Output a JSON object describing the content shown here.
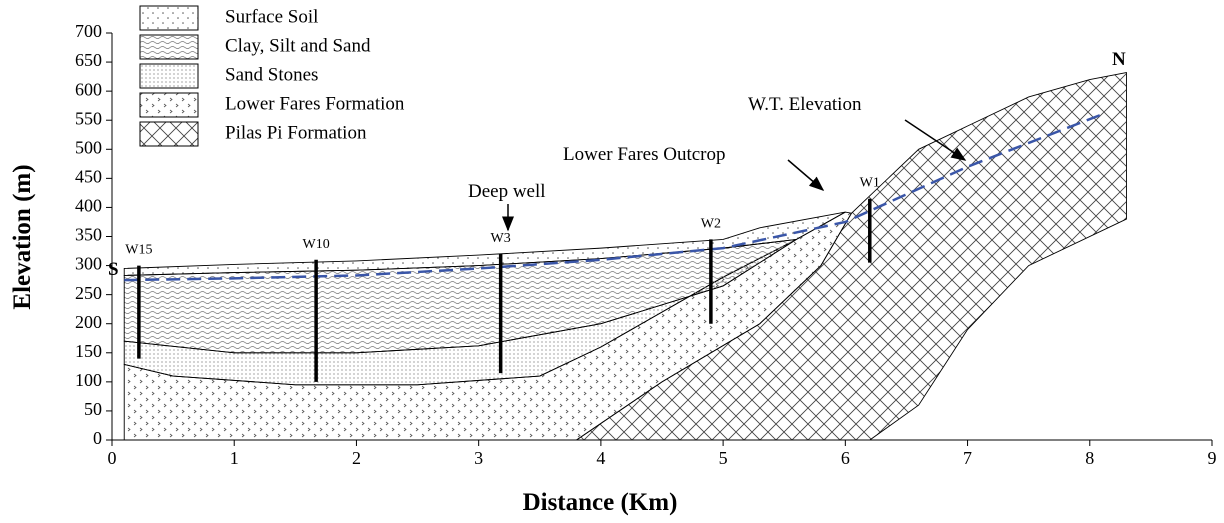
{
  "chart_data": {
    "type": "cross-section",
    "x_label": "Distance (Km)",
    "y_label": "Elevation (m)",
    "xlim": [
      0,
      9
    ],
    "xticks": [
      0,
      1,
      2,
      3,
      4,
      5,
      6,
      7,
      8,
      9
    ],
    "ylim": [
      0,
      700
    ],
    "yticks": [
      0,
      50,
      100,
      150,
      200,
      250,
      300,
      350,
      400,
      450,
      500,
      550,
      600,
      650,
      700
    ],
    "layers": [
      {
        "name": "Pilas Pi Formation",
        "x": [
          6.2,
          6.6,
          7,
          7.5,
          8,
          8.3,
          8.3,
          7.5,
          7,
          6.6,
          6.2,
          3.8,
          4.5,
          5.3,
          5.8,
          6.05
        ],
        "y": [
          420,
          500,
          540,
          590,
          620,
          632,
          380,
          300,
          190,
          60,
          0,
          0,
          100,
          200,
          300,
          390
        ]
      },
      {
        "name": "Lower Fares Formation",
        "x": [
          0.1,
          3.8,
          4.5,
          5.3,
          5.8,
          6.05,
          6.0,
          5.6,
          5,
          4,
          3.5,
          2.5,
          1.5,
          0.5,
          0.1
        ],
        "y": [
          0,
          0,
          100,
          200,
          300,
          390,
          392,
          345,
          280,
          160,
          110,
          95,
          95,
          110,
          130
        ]
      },
      {
        "name": "Sand Stones",
        "x": [
          0.1,
          0.5,
          1.5,
          2.5,
          3.5,
          4,
          5,
          5.6,
          5,
          4,
          3,
          2,
          1,
          0.1
        ],
        "y": [
          130,
          110,
          95,
          95,
          110,
          160,
          280,
          345,
          265,
          200,
          162,
          150,
          150,
          170
        ]
      },
      {
        "name": "Clay, Silt and Sand",
        "x": [
          0.1,
          1,
          2,
          3,
          4,
          5,
          5.6,
          5,
          4,
          3,
          2,
          1,
          0.1
        ],
        "y": [
          170,
          150,
          150,
          162,
          200,
          265,
          345,
          330,
          312,
          300,
          292,
          288,
          283
        ]
      },
      {
        "name": "Surface Soil",
        "x": [
          0.1,
          1,
          2,
          3,
          4,
          5,
          5.3,
          6,
          5.6,
          5,
          4,
          3,
          2,
          1,
          0.1
        ],
        "y": [
          295,
          302,
          308,
          318,
          330,
          345,
          365,
          392,
          345,
          330,
          312,
          300,
          292,
          288,
          283
        ]
      }
    ],
    "water_table": {
      "name": "W.T. Elevation",
      "color": "#3a56a8",
      "x": [
        0.1,
        1,
        2,
        3,
        4,
        5,
        6,
        7,
        8.1
      ],
      "y": [
        275,
        278,
        283,
        295,
        310,
        330,
        375,
        470,
        560
      ]
    },
    "wells": [
      {
        "name": "W15",
        "x": 0.22,
        "top": 300,
        "bottom": 140
      },
      {
        "name": "W10",
        "x": 1.67,
        "top": 310,
        "bottom": 100
      },
      {
        "name": "W3",
        "x": 3.18,
        "top": 320,
        "bottom": 115
      },
      {
        "name": "W2",
        "x": 4.9,
        "top": 345,
        "bottom": 200
      },
      {
        "name": "W1",
        "x": 6.2,
        "top": 415,
        "bottom": 305
      }
    ],
    "annotations": [
      "S",
      "N",
      "Lower Fares Outcrop",
      "Deep well"
    ]
  }
}
